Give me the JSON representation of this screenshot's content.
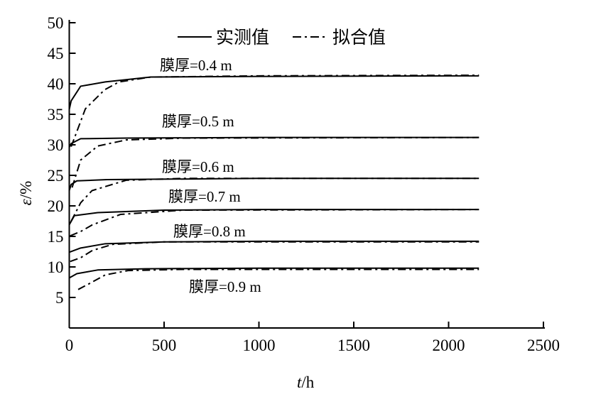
{
  "chart_data": {
    "type": "line",
    "xlabel_italic": "t",
    "xlabel_unit": "/h",
    "ylabel_italic": "ε",
    "ylabel_unit": "/%",
    "xlim": [
      0,
      2500
    ],
    "ylim": [
      0,
      50
    ],
    "xticks": [
      "0",
      "500",
      "1000",
      "1500",
      "2000",
      "2500"
    ],
    "yticks": [
      "5",
      "10",
      "15",
      "20",
      "25",
      "30",
      "35",
      "40",
      "45",
      "50"
    ],
    "grid": false,
    "legend": {
      "position": "top",
      "entries": [
        {
          "label": "实测值",
          "style": "solid"
        },
        {
          "label": "拟合值",
          "style": "dash-dot"
        }
      ]
    },
    "series": [
      {
        "name": "膜厚=0.4 m",
        "measured": [
          [
            0,
            35.8
          ],
          [
            10,
            37.2
          ],
          [
            60,
            39.6
          ],
          [
            190,
            40.3
          ],
          [
            430,
            41.1
          ],
          [
            1000,
            41.2
          ],
          [
            2160,
            41.3
          ]
        ],
        "fitted": [
          [
            10,
            29.7
          ],
          [
            85,
            35.9
          ],
          [
            186,
            39.0
          ],
          [
            262,
            40.3
          ],
          [
            430,
            41.1
          ],
          [
            1000,
            41.3
          ],
          [
            2160,
            41.4
          ]
        ]
      },
      {
        "name": "膜厚=0.5 m",
        "measured": [
          [
            0,
            29.6
          ],
          [
            10,
            30.2
          ],
          [
            60,
            31.0
          ],
          [
            300,
            31.1
          ],
          [
            1000,
            31.2
          ],
          [
            2160,
            31.2
          ]
        ],
        "fitted": [
          [
            15,
            23.0
          ],
          [
            60,
            27.5
          ],
          [
            150,
            29.8
          ],
          [
            300,
            30.8
          ],
          [
            600,
            31.1
          ],
          [
            2160,
            31.2
          ]
        ]
      },
      {
        "name": "膜厚=0.6 m",
        "measured": [
          [
            0,
            22.5
          ],
          [
            10,
            23.5
          ],
          [
            40,
            24.1
          ],
          [
            200,
            24.3
          ],
          [
            1000,
            24.5
          ],
          [
            2160,
            24.5
          ]
        ],
        "fitted": [
          [
            10,
            17.5
          ],
          [
            60,
            20.5
          ],
          [
            120,
            22.5
          ],
          [
            300,
            24.2
          ],
          [
            600,
            24.5
          ],
          [
            2160,
            24.5
          ]
        ]
      },
      {
        "name": "膜厚=0.7 m",
        "measured": [
          [
            0,
            16.9
          ],
          [
            27,
            18.4
          ],
          [
            150,
            18.9
          ],
          [
            500,
            19.3
          ],
          [
            1000,
            19.4
          ],
          [
            2160,
            19.4
          ]
        ],
        "fitted": [
          [
            5,
            15.1
          ],
          [
            60,
            15.8
          ],
          [
            122,
            16.9
          ],
          [
            270,
            18.6
          ],
          [
            600,
            19.3
          ],
          [
            2160,
            19.4
          ]
        ]
      },
      {
        "name": "膜厚=0.8 m",
        "measured": [
          [
            0,
            12.4
          ],
          [
            60,
            13.1
          ],
          [
            190,
            13.8
          ],
          [
            500,
            14.1
          ],
          [
            1000,
            14.2
          ],
          [
            2160,
            14.2
          ]
        ],
        "fitted": [
          [
            5,
            10.9
          ],
          [
            60,
            11.5
          ],
          [
            122,
            12.7
          ],
          [
            230,
            13.7
          ],
          [
            500,
            14.1
          ],
          [
            2160,
            14.1
          ]
        ]
      },
      {
        "name": "膜厚=0.9 m",
        "measured": [
          [
            0,
            8.2
          ],
          [
            40,
            8.9
          ],
          [
            150,
            9.5
          ],
          [
            400,
            9.7
          ],
          [
            1000,
            9.8
          ],
          [
            2160,
            9.8
          ]
        ],
        "fitted": [
          [
            47,
            6.3
          ],
          [
            120,
            7.5
          ],
          [
            190,
            8.7
          ],
          [
            310,
            9.4
          ],
          [
            600,
            9.6
          ],
          [
            2160,
            9.6
          ]
        ]
      }
    ]
  }
}
